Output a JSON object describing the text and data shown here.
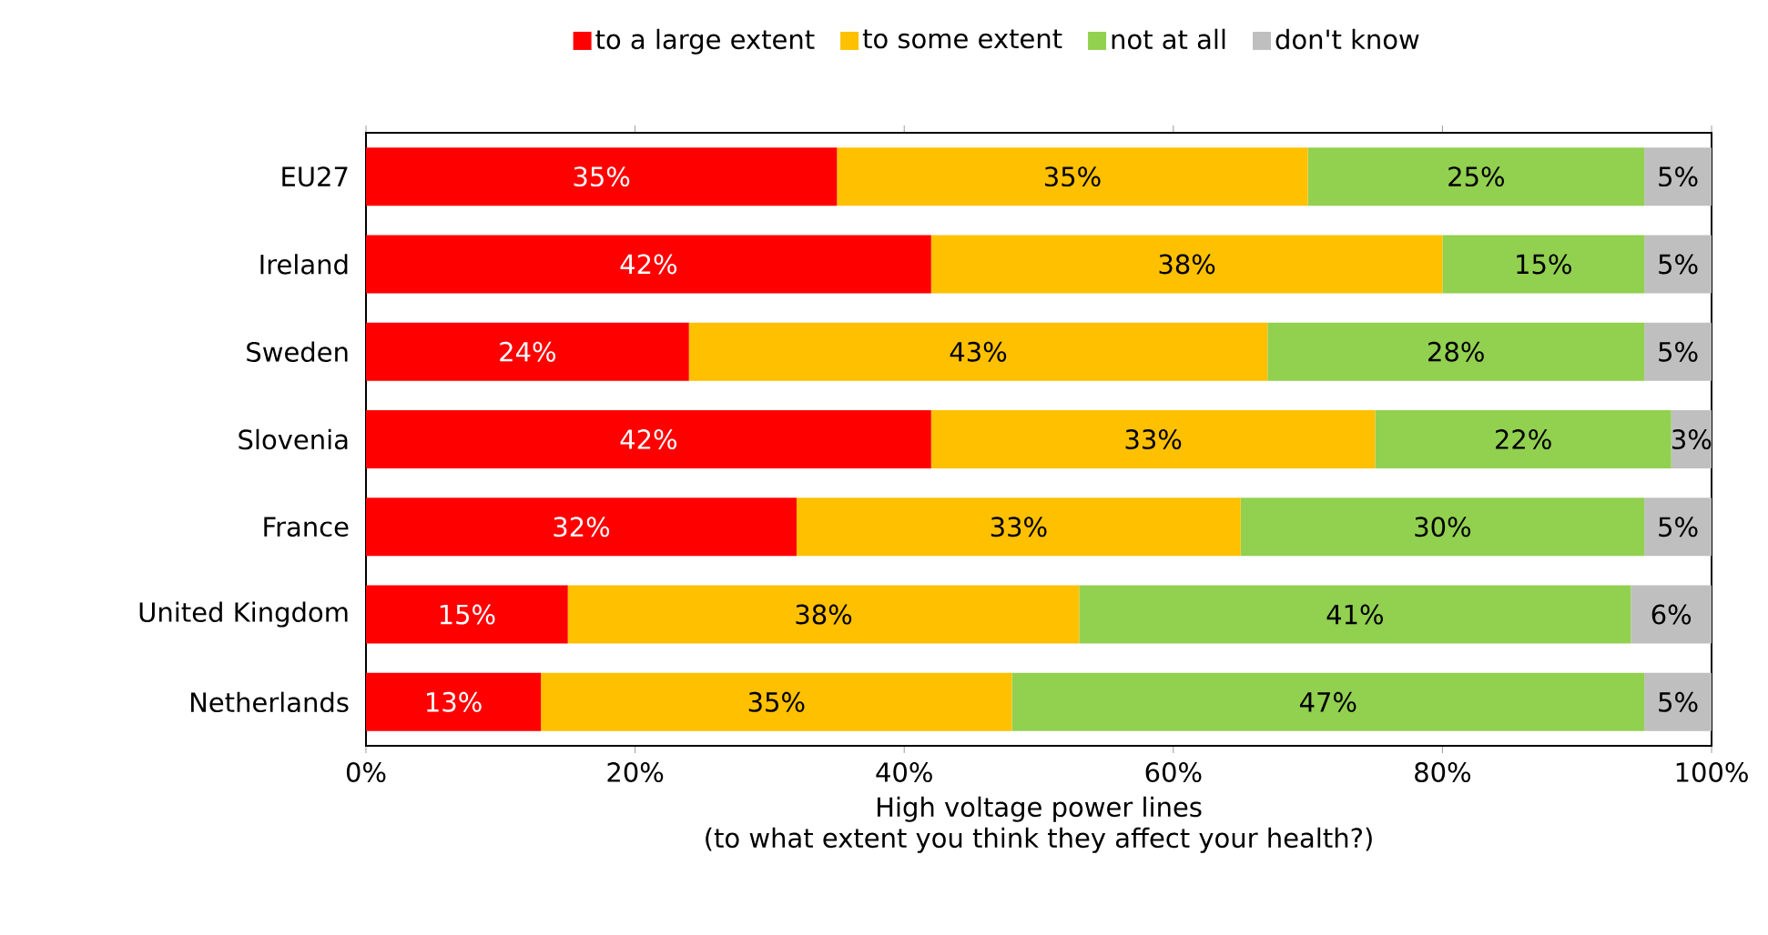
{
  "chart_data": {
    "type": "bar",
    "orientation": "horizontal",
    "stacked": true,
    "categories": [
      "EU27",
      "Ireland",
      "Sweden",
      "Slovenia",
      "France",
      "United Kingdom",
      "Netherlands"
    ],
    "series": [
      {
        "name": "to a large extent",
        "color": "#ff0000",
        "values": [
          35,
          42,
          24,
          42,
          32,
          15,
          13
        ],
        "value_labels": [
          "35%",
          "42%",
          "24%",
          "42%",
          "32%",
          "15%",
          "13%"
        ]
      },
      {
        "name": "to some extent",
        "color": "#ffc000",
        "values": [
          35,
          38,
          43,
          33,
          33,
          38,
          35
        ],
        "value_labels": [
          "35%",
          "38%",
          "43%",
          "33%",
          "33%",
          "38%",
          "35%"
        ]
      },
      {
        "name": "not at all",
        "color": "#92d050",
        "values": [
          25,
          15,
          28,
          22,
          30,
          41,
          47
        ],
        "value_labels": [
          "25%",
          "15%",
          "28%",
          "22%",
          "30%",
          "41%",
          "47%"
        ]
      },
      {
        "name": "don't know",
        "color": "#bfbfbf",
        "values": [
          5,
          5,
          5,
          3,
          5,
          6,
          5
        ],
        "value_labels": [
          "5%",
          "5%",
          "5%",
          "3%",
          "5%",
          "6%",
          "5%"
        ]
      }
    ],
    "xlim": [
      0,
      100
    ],
    "xticks": [
      {
        "value": 0,
        "label": "0%"
      },
      {
        "value": 20,
        "label": "20%"
      },
      {
        "value": 40,
        "label": "40%"
      },
      {
        "value": 60,
        "label": "60%"
      },
      {
        "value": 80,
        "label": "80%"
      },
      {
        "value": 100,
        "label": "100%"
      }
    ],
    "xlabel": "High voltage power lines",
    "annotations": [
      "(to what extent you think they affect your health?)"
    ],
    "legend": "top",
    "grid": false
  }
}
